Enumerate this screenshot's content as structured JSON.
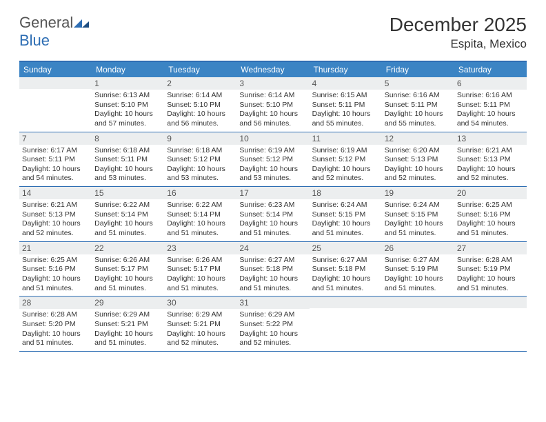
{
  "logo": {
    "part1": "General",
    "part2": "Blue"
  },
  "title": "December 2025",
  "location": "Espita, Mexico",
  "colors": {
    "header_bg": "#3b84c4",
    "border": "#2d6db3",
    "daynum_bg": "#eceeef",
    "text": "#333333"
  },
  "weekdays": [
    "Sunday",
    "Monday",
    "Tuesday",
    "Wednesday",
    "Thursday",
    "Friday",
    "Saturday"
  ],
  "weeks": [
    [
      {
        "n": "",
        "sr": "",
        "ss": "",
        "dl": ""
      },
      {
        "n": "1",
        "sr": "Sunrise: 6:13 AM",
        "ss": "Sunset: 5:10 PM",
        "dl": "Daylight: 10 hours and 57 minutes."
      },
      {
        "n": "2",
        "sr": "Sunrise: 6:14 AM",
        "ss": "Sunset: 5:10 PM",
        "dl": "Daylight: 10 hours and 56 minutes."
      },
      {
        "n": "3",
        "sr": "Sunrise: 6:14 AM",
        "ss": "Sunset: 5:10 PM",
        "dl": "Daylight: 10 hours and 56 minutes."
      },
      {
        "n": "4",
        "sr": "Sunrise: 6:15 AM",
        "ss": "Sunset: 5:11 PM",
        "dl": "Daylight: 10 hours and 55 minutes."
      },
      {
        "n": "5",
        "sr": "Sunrise: 6:16 AM",
        "ss": "Sunset: 5:11 PM",
        "dl": "Daylight: 10 hours and 55 minutes."
      },
      {
        "n": "6",
        "sr": "Sunrise: 6:16 AM",
        "ss": "Sunset: 5:11 PM",
        "dl": "Daylight: 10 hours and 54 minutes."
      }
    ],
    [
      {
        "n": "7",
        "sr": "Sunrise: 6:17 AM",
        "ss": "Sunset: 5:11 PM",
        "dl": "Daylight: 10 hours and 54 minutes."
      },
      {
        "n": "8",
        "sr": "Sunrise: 6:18 AM",
        "ss": "Sunset: 5:11 PM",
        "dl": "Daylight: 10 hours and 53 minutes."
      },
      {
        "n": "9",
        "sr": "Sunrise: 6:18 AM",
        "ss": "Sunset: 5:12 PM",
        "dl": "Daylight: 10 hours and 53 minutes."
      },
      {
        "n": "10",
        "sr": "Sunrise: 6:19 AM",
        "ss": "Sunset: 5:12 PM",
        "dl": "Daylight: 10 hours and 53 minutes."
      },
      {
        "n": "11",
        "sr": "Sunrise: 6:19 AM",
        "ss": "Sunset: 5:12 PM",
        "dl": "Daylight: 10 hours and 52 minutes."
      },
      {
        "n": "12",
        "sr": "Sunrise: 6:20 AM",
        "ss": "Sunset: 5:13 PM",
        "dl": "Daylight: 10 hours and 52 minutes."
      },
      {
        "n": "13",
        "sr": "Sunrise: 6:21 AM",
        "ss": "Sunset: 5:13 PM",
        "dl": "Daylight: 10 hours and 52 minutes."
      }
    ],
    [
      {
        "n": "14",
        "sr": "Sunrise: 6:21 AM",
        "ss": "Sunset: 5:13 PM",
        "dl": "Daylight: 10 hours and 52 minutes."
      },
      {
        "n": "15",
        "sr": "Sunrise: 6:22 AM",
        "ss": "Sunset: 5:14 PM",
        "dl": "Daylight: 10 hours and 51 minutes."
      },
      {
        "n": "16",
        "sr": "Sunrise: 6:22 AM",
        "ss": "Sunset: 5:14 PM",
        "dl": "Daylight: 10 hours and 51 minutes."
      },
      {
        "n": "17",
        "sr": "Sunrise: 6:23 AM",
        "ss": "Sunset: 5:14 PM",
        "dl": "Daylight: 10 hours and 51 minutes."
      },
      {
        "n": "18",
        "sr": "Sunrise: 6:24 AM",
        "ss": "Sunset: 5:15 PM",
        "dl": "Daylight: 10 hours and 51 minutes."
      },
      {
        "n": "19",
        "sr": "Sunrise: 6:24 AM",
        "ss": "Sunset: 5:15 PM",
        "dl": "Daylight: 10 hours and 51 minutes."
      },
      {
        "n": "20",
        "sr": "Sunrise: 6:25 AM",
        "ss": "Sunset: 5:16 PM",
        "dl": "Daylight: 10 hours and 51 minutes."
      }
    ],
    [
      {
        "n": "21",
        "sr": "Sunrise: 6:25 AM",
        "ss": "Sunset: 5:16 PM",
        "dl": "Daylight: 10 hours and 51 minutes."
      },
      {
        "n": "22",
        "sr": "Sunrise: 6:26 AM",
        "ss": "Sunset: 5:17 PM",
        "dl": "Daylight: 10 hours and 51 minutes."
      },
      {
        "n": "23",
        "sr": "Sunrise: 6:26 AM",
        "ss": "Sunset: 5:17 PM",
        "dl": "Daylight: 10 hours and 51 minutes."
      },
      {
        "n": "24",
        "sr": "Sunrise: 6:27 AM",
        "ss": "Sunset: 5:18 PM",
        "dl": "Daylight: 10 hours and 51 minutes."
      },
      {
        "n": "25",
        "sr": "Sunrise: 6:27 AM",
        "ss": "Sunset: 5:18 PM",
        "dl": "Daylight: 10 hours and 51 minutes."
      },
      {
        "n": "26",
        "sr": "Sunrise: 6:27 AM",
        "ss": "Sunset: 5:19 PM",
        "dl": "Daylight: 10 hours and 51 minutes."
      },
      {
        "n": "27",
        "sr": "Sunrise: 6:28 AM",
        "ss": "Sunset: 5:19 PM",
        "dl": "Daylight: 10 hours and 51 minutes."
      }
    ],
    [
      {
        "n": "28",
        "sr": "Sunrise: 6:28 AM",
        "ss": "Sunset: 5:20 PM",
        "dl": "Daylight: 10 hours and 51 minutes."
      },
      {
        "n": "29",
        "sr": "Sunrise: 6:29 AM",
        "ss": "Sunset: 5:21 PM",
        "dl": "Daylight: 10 hours and 51 minutes."
      },
      {
        "n": "30",
        "sr": "Sunrise: 6:29 AM",
        "ss": "Sunset: 5:21 PM",
        "dl": "Daylight: 10 hours and 52 minutes."
      },
      {
        "n": "31",
        "sr": "Sunrise: 6:29 AM",
        "ss": "Sunset: 5:22 PM",
        "dl": "Daylight: 10 hours and 52 minutes."
      },
      {
        "n": "",
        "sr": "",
        "ss": "",
        "dl": ""
      },
      {
        "n": "",
        "sr": "",
        "ss": "",
        "dl": ""
      },
      {
        "n": "",
        "sr": "",
        "ss": "",
        "dl": ""
      }
    ]
  ]
}
